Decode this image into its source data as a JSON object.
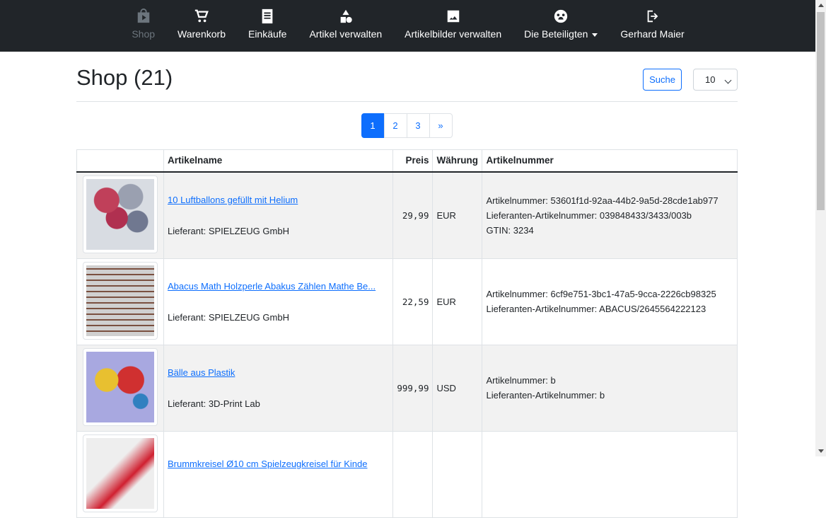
{
  "nav": {
    "items": [
      {
        "label": "Shop",
        "icon": "shop-bag-icon",
        "active": true
      },
      {
        "label": "Warenkorb",
        "icon": "cart-icon"
      },
      {
        "label": "Einkäufe",
        "icon": "receipt-icon"
      },
      {
        "label": "Artikel verwalten",
        "icon": "shapes-icon"
      },
      {
        "label": "Artikelbilder verwalten",
        "icon": "image-icon"
      },
      {
        "label": "Die Beteiligten",
        "icon": "group-icon",
        "dropdown": true
      },
      {
        "label": "Gerhard Maier",
        "icon": "logout-icon"
      }
    ]
  },
  "page": {
    "title": "Shop (21)",
    "search_label": "Suche",
    "page_size": "10"
  },
  "pagination": [
    "1",
    "2",
    "3",
    "»"
  ],
  "table": {
    "headers": [
      "",
      "Artikelname",
      "Preis",
      "Währung",
      "Artikelnummer"
    ],
    "rows": [
      {
        "name": "10 Luftballons gefüllt mit Helium",
        "supplier": "Lieferant: SPIELZEUG GmbH",
        "price": "29,99",
        "currency": "EUR",
        "info": [
          "Artikelnummer: 53601f1d-92aa-44b2-9a5d-28cde1ab977",
          "Lieferanten-Artikelnummer: 039848433/3433/003b",
          "GTIN: 3234"
        ]
      },
      {
        "name": "Abacus Math Holzperle Abakus Zählen Mathe Be...",
        "supplier": "Lieferant: SPIELZEUG GmbH",
        "price": "22,59",
        "currency": "EUR",
        "info": [
          "Artikelnummer: 6cf9e751-3bc1-47a5-9cca-2226cb98325",
          "Lieferanten-Artikelnummer: ABACUS/2645564222123"
        ]
      },
      {
        "name": "Bälle aus Plastik",
        "supplier": "Lieferant: 3D-Print Lab",
        "price": "999,99",
        "currency": "USD",
        "info": [
          "Artikelnummer: b",
          "Lieferanten-Artikelnummer: b"
        ]
      },
      {
        "name": "Brummkreisel Ø10 cm Spielzeugkreisel für Kinde",
        "supplier": "",
        "price": "",
        "currency": "",
        "info": []
      }
    ]
  }
}
